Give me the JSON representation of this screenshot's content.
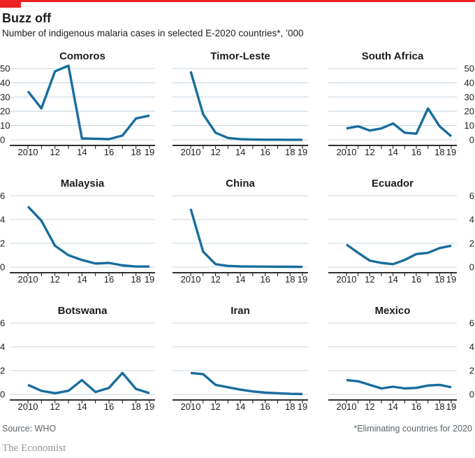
{
  "header": {
    "title": "Buzz off",
    "subtitle": "Number of indigenous malaria cases in selected E-2020 countries*, ’000"
  },
  "footer": {
    "source": "Source: WHO",
    "footnote": "*Eliminating countries for 2020",
    "brand": "The Economist"
  },
  "colors": {
    "accent_red": "#ED2224",
    "line_blue": "#186D9D",
    "gridline": "#C8D7E0",
    "axis": "#121212",
    "text_dark": "#1D1D1D",
    "text_muted": "#5E6469",
    "brand_gray": "#8E969D"
  },
  "x_axis": {
    "years": [
      2010,
      2011,
      2012,
      2013,
      2014,
      2015,
      2016,
      2017,
      2018,
      2019
    ],
    "label_years": [
      2010,
      2012,
      2014,
      2016,
      2018,
      2019
    ],
    "tick_labels": [
      "2010",
      "12",
      "14",
      "16",
      "18",
      "19"
    ]
  },
  "chart_data": [
    {
      "type": "line",
      "title": "Comoros",
      "ylabels_side": "left",
      "ylim": [
        0,
        50
      ],
      "yticks": [
        0,
        10,
        20,
        30,
        40,
        50
      ],
      "grid": true,
      "x": [
        2010,
        2011,
        2012,
        2013,
        2014,
        2015,
        2016,
        2017,
        2018,
        2019
      ],
      "values": [
        34,
        22,
        48,
        52,
        1,
        0.8,
        0.5,
        3,
        15,
        17
      ]
    },
    {
      "type": "line",
      "title": "Timor-Leste",
      "ylabels_side": "none",
      "ylim": [
        0,
        50
      ],
      "yticks": [
        0,
        10,
        20,
        30,
        40,
        50
      ],
      "grid": true,
      "x": [
        2010,
        2011,
        2012,
        2013,
        2014,
        2015,
        2016,
        2017,
        2018,
        2019
      ],
      "values": [
        48,
        18,
        5,
        1.3,
        0.5,
        0.2,
        0.1,
        0.1,
        0.05,
        0.05
      ]
    },
    {
      "type": "line",
      "title": "South Africa",
      "ylabels_side": "right",
      "ylim": [
        0,
        50
      ],
      "yticks": [
        0,
        10,
        20,
        30,
        40,
        50
      ],
      "grid": true,
      "x": [
        2010,
        2011,
        2012,
        2013,
        2014,
        2015,
        2016,
        2017,
        2018,
        2019
      ],
      "values": [
        8,
        9.5,
        6.5,
        8,
        11.5,
        5,
        4.3,
        22,
        9.5,
        2.5
      ]
    },
    {
      "type": "line",
      "title": "Malaysia",
      "ylabels_side": "left",
      "ylim": [
        0,
        6
      ],
      "yticks": [
        0,
        2,
        4,
        6
      ],
      "grid": true,
      "x": [
        2010,
        2011,
        2012,
        2013,
        2014,
        2015,
        2016,
        2017,
        2018,
        2019
      ],
      "values": [
        5.1,
        3.9,
        1.8,
        1.0,
        0.6,
        0.3,
        0.35,
        0.15,
        0.05,
        0.05
      ]
    },
    {
      "type": "line",
      "title": "China",
      "ylabels_side": "none",
      "ylim": [
        0,
        6
      ],
      "yticks": [
        0,
        2,
        4,
        6
      ],
      "grid": true,
      "x": [
        2010,
        2011,
        2012,
        2013,
        2014,
        2015,
        2016,
        2017,
        2018,
        2019
      ],
      "values": [
        4.9,
        1.3,
        0.25,
        0.1,
        0.06,
        0.05,
        0.04,
        0.03,
        0.03,
        0.02
      ]
    },
    {
      "type": "line",
      "title": "Ecuador",
      "ylabels_side": "right",
      "ylim": [
        0,
        6
      ],
      "yticks": [
        0,
        2,
        4,
        6
      ],
      "grid": true,
      "x": [
        2010,
        2011,
        2012,
        2013,
        2014,
        2015,
        2016,
        2017,
        2018,
        2019
      ],
      "values": [
        1.9,
        1.2,
        0.55,
        0.35,
        0.25,
        0.6,
        1.1,
        1.2,
        1.6,
        1.8
      ]
    },
    {
      "type": "line",
      "title": "Botswana",
      "ylabels_side": "left",
      "ylim": [
        0,
        6
      ],
      "yticks": [
        0,
        2,
        4,
        6
      ],
      "grid": true,
      "x": [
        2010,
        2011,
        2012,
        2013,
        2014,
        2015,
        2016,
        2017,
        2018,
        2019
      ],
      "values": [
        0.8,
        0.3,
        0.1,
        0.3,
        1.2,
        0.2,
        0.55,
        1.8,
        0.45,
        0.1
      ]
    },
    {
      "type": "line",
      "title": "Iran",
      "ylabels_side": "none",
      "ylim": [
        0,
        6
      ],
      "yticks": [
        0,
        2,
        4,
        6
      ],
      "grid": true,
      "x": [
        2010,
        2011,
        2012,
        2013,
        2014,
        2015,
        2016,
        2017,
        2018,
        2019
      ],
      "values": [
        1.8,
        1.7,
        0.8,
        0.6,
        0.4,
        0.25,
        0.15,
        0.1,
        0.05,
        0.03
      ]
    },
    {
      "type": "line",
      "title": "Mexico",
      "ylabels_side": "right",
      "ylim": [
        0,
        6
      ],
      "yticks": [
        0,
        2,
        4,
        6
      ],
      "grid": true,
      "x": [
        2010,
        2011,
        2012,
        2013,
        2014,
        2015,
        2016,
        2017,
        2018,
        2019
      ],
      "values": [
        1.2,
        1.1,
        0.8,
        0.5,
        0.65,
        0.5,
        0.55,
        0.75,
        0.8,
        0.6
      ]
    }
  ]
}
